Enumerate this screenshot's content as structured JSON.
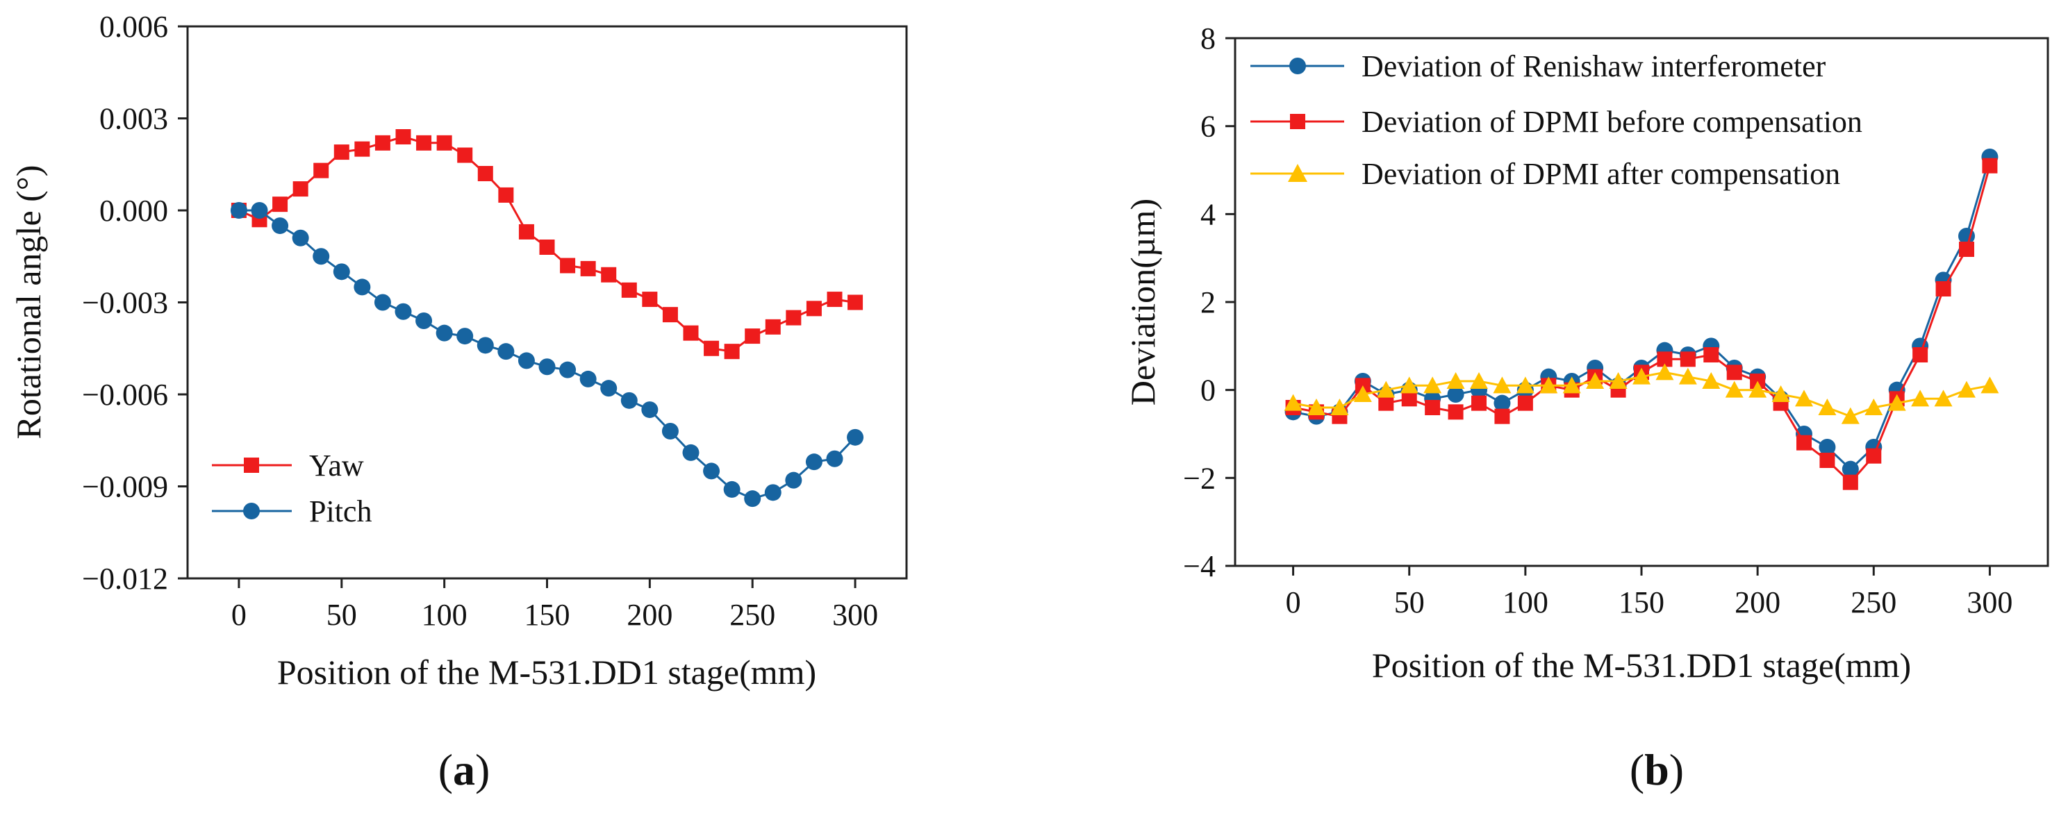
{
  "colors": {
    "yaw": "#ee1c1c",
    "pitch": "#1764a0",
    "renishaw": "#1764a0",
    "dpmi_before": "#ee1c1c",
    "dpmi_after": "#ffc000",
    "axis": "#222222"
  },
  "panels": [
    {
      "label_open": "(",
      "label_letter": "a",
      "label_close": ")"
    },
    {
      "label_open": "(",
      "label_letter": "b",
      "label_close": ")"
    }
  ],
  "chart_data": [
    {
      "type": "line",
      "panel": "a",
      "title": "",
      "xlabel": "Position of the M-531.DD1 stage(mm)",
      "ylabel": "Rotational angle (°)",
      "xlim": [
        -25,
        325
      ],
      "ylim": [
        -0.012,
        0.006
      ],
      "xticks": [
        0,
        50,
        100,
        150,
        200,
        250,
        300
      ],
      "xtick_labels": [
        "0",
        "50",
        "100",
        "150",
        "200",
        "250",
        "300"
      ],
      "yticks": [
        -0.012,
        -0.009,
        -0.006,
        -0.003,
        0.0,
        0.003,
        0.006
      ],
      "ytick_labels": [
        "−0.012",
        "−0.009",
        "−0.006",
        "−0.003",
        "0.000",
        "0.003",
        "0.006"
      ],
      "legend_position": "bottom-left",
      "series": [
        {
          "name": "Yaw",
          "marker": "square",
          "color_key": "yaw",
          "x": [
            0,
            10,
            20,
            30,
            40,
            50,
            60,
            70,
            80,
            90,
            100,
            110,
            120,
            130,
            140,
            150,
            160,
            170,
            180,
            190,
            200,
            210,
            220,
            230,
            240,
            250,
            260,
            270,
            280,
            290,
            300
          ],
          "y": [
            0.0,
            -0.0003,
            0.0002,
            0.0007,
            0.0013,
            0.0019,
            0.002,
            0.0022,
            0.0024,
            0.0022,
            0.0022,
            0.0018,
            0.0012,
            0.0005,
            -0.0007,
            -0.0012,
            -0.0018,
            -0.0019,
            -0.0021,
            -0.0026,
            -0.0029,
            -0.0034,
            -0.004,
            -0.0045,
            -0.0046,
            -0.0041,
            -0.0038,
            -0.0035,
            -0.0032,
            -0.0029,
            -0.003
          ]
        },
        {
          "name": "Pitch",
          "marker": "circle",
          "color_key": "pitch",
          "x": [
            0,
            10,
            20,
            30,
            40,
            50,
            60,
            70,
            80,
            90,
            100,
            110,
            120,
            130,
            140,
            150,
            160,
            170,
            180,
            190,
            200,
            210,
            220,
            230,
            240,
            250,
            260,
            270,
            280,
            290,
            300
          ],
          "y": [
            0.0,
            0.0,
            -0.0005,
            -0.0009,
            -0.0015,
            -0.002,
            -0.0025,
            -0.003,
            -0.0033,
            -0.0036,
            -0.004,
            -0.0041,
            -0.0044,
            -0.0046,
            -0.0049,
            -0.0051,
            -0.0052,
            -0.0055,
            -0.0058,
            -0.0062,
            -0.0065,
            -0.0072,
            -0.0079,
            -0.0085,
            -0.0091,
            -0.0094,
            -0.0092,
            -0.0088,
            -0.0082,
            -0.0081,
            -0.0074
          ]
        }
      ]
    },
    {
      "type": "line",
      "panel": "b",
      "title": "",
      "xlabel": "Position of the M-531.DD1 stage(mm)",
      "ylabel": "Deviation(µm)",
      "xlim": [
        -25,
        325
      ],
      "ylim": [
        -4,
        8
      ],
      "xticks": [
        0,
        50,
        100,
        150,
        200,
        250,
        300
      ],
      "xtick_labels": [
        "0",
        "50",
        "100",
        "150",
        "200",
        "250",
        "300"
      ],
      "yticks": [
        -4,
        -2,
        0,
        2,
        4,
        6,
        8
      ],
      "ytick_labels": [
        "−4",
        "−2",
        "0",
        "2",
        "4",
        "6",
        "8"
      ],
      "legend_position": "top-left",
      "series": [
        {
          "name": "Deviation of Renishaw interferometer",
          "marker": "circle",
          "color_key": "renishaw",
          "x": [
            0,
            10,
            20,
            30,
            40,
            50,
            60,
            70,
            80,
            90,
            100,
            110,
            120,
            130,
            140,
            150,
            160,
            170,
            180,
            190,
            200,
            210,
            220,
            230,
            240,
            250,
            260,
            270,
            280,
            290,
            300
          ],
          "y": [
            -0.5,
            -0.6,
            -0.5,
            0.2,
            -0.1,
            0.0,
            -0.2,
            -0.1,
            0.0,
            -0.3,
            0.0,
            0.3,
            0.2,
            0.5,
            0.1,
            0.5,
            0.9,
            0.8,
            1.0,
            0.5,
            0.3,
            -0.2,
            -1.0,
            -1.3,
            -1.8,
            -1.3,
            0.0,
            1.0,
            2.5,
            3.5,
            5.3
          ]
        },
        {
          "name": "Deviation of DPMI before compensation",
          "marker": "square",
          "color_key": "dpmi_before",
          "x": [
            0,
            10,
            20,
            30,
            40,
            50,
            60,
            70,
            80,
            90,
            100,
            110,
            120,
            130,
            140,
            150,
            160,
            170,
            180,
            190,
            200,
            210,
            220,
            230,
            240,
            250,
            260,
            270,
            280,
            290,
            300
          ],
          "y": [
            -0.4,
            -0.5,
            -0.6,
            0.1,
            -0.3,
            -0.2,
            -0.4,
            -0.5,
            -0.3,
            -0.6,
            -0.3,
            0.1,
            0.0,
            0.3,
            0.0,
            0.4,
            0.7,
            0.7,
            0.8,
            0.4,
            0.2,
            -0.3,
            -1.2,
            -1.6,
            -2.1,
            -1.5,
            -0.2,
            0.8,
            2.3,
            3.2,
            5.1
          ]
        },
        {
          "name": "Deviation of DPMI after compensation",
          "marker": "triangle",
          "color_key": "dpmi_after",
          "x": [
            0,
            10,
            20,
            30,
            40,
            50,
            60,
            70,
            80,
            90,
            100,
            110,
            120,
            130,
            140,
            150,
            160,
            170,
            180,
            190,
            200,
            210,
            220,
            230,
            240,
            250,
            260,
            270,
            280,
            290,
            300
          ],
          "y": [
            -0.3,
            -0.4,
            -0.4,
            -0.1,
            0.0,
            0.1,
            0.1,
            0.2,
            0.2,
            0.1,
            0.1,
            0.1,
            0.1,
            0.2,
            0.2,
            0.3,
            0.4,
            0.3,
            0.2,
            0.0,
            0.0,
            -0.1,
            -0.2,
            -0.4,
            -0.6,
            -0.4,
            -0.3,
            -0.2,
            -0.2,
            0.0,
            0.1
          ]
        }
      ]
    }
  ]
}
